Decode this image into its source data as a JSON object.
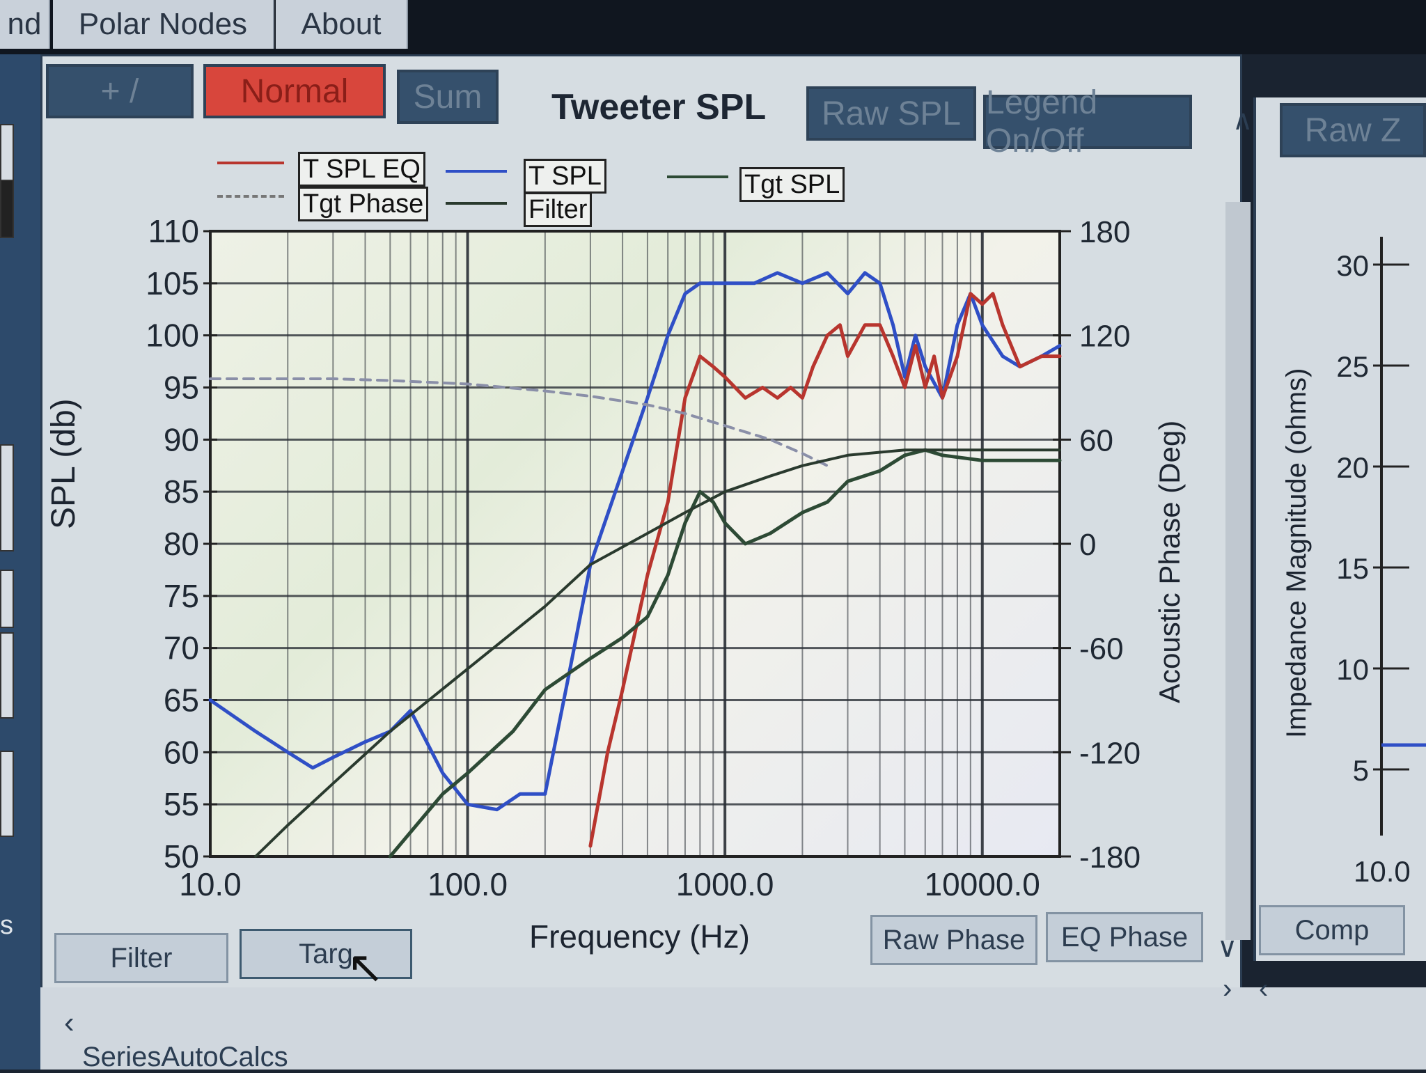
{
  "menu": {
    "tabs": [
      {
        "label": "nd"
      },
      {
        "label": "Polar Nodes"
      },
      {
        "label": "About"
      }
    ]
  },
  "toolbar": {
    "btn_plusminus": "+ /",
    "btn_normal": "Normal",
    "btn_sum": "Sum",
    "chart_title": "Tweeter SPL",
    "btn_raw_spl": "Raw SPL",
    "btn_legend": "Legend On/Off",
    "btn_raw_z": "Raw Z"
  },
  "bottom": {
    "btn_filter": "Filter",
    "btn_target": "Targ",
    "btn_raw_phase": "Raw Phase",
    "btn_eq_phase": "EQ Phase",
    "btn_comp": "Comp",
    "left_label": "s",
    "series_auto": "SeriesAutoCalcs"
  },
  "colors": {
    "t_spl_eq": "#b8352e",
    "t_spl": "#2f4fc6",
    "tgt_spl": "#2d4a35",
    "tgt_phase": "#8a8fa8",
    "filter": "#2a3a2e",
    "grid": "#2a2f36",
    "active_button": "#d8463c"
  },
  "chart_data": {
    "type": "line",
    "x_scale": "log",
    "xlabel": "Frequency (Hz)",
    "ylabel": "SPL (db)",
    "y2label": "Acoustic Phase (Deg)",
    "xlim": [
      10,
      20000
    ],
    "ylim": [
      50,
      110
    ],
    "y2lim": [
      -180,
      180
    ],
    "x_tick_labels": [
      "10.0",
      "100.0",
      "1000.0",
      "10000.0"
    ],
    "x_ticks": [
      10,
      100,
      1000,
      10000
    ],
    "y_ticks": [
      110,
      105,
      100,
      95,
      90,
      85,
      80,
      75,
      70,
      65,
      60,
      55,
      50
    ],
    "y2_ticks": [
      180,
      120,
      60,
      0,
      -60,
      -120,
      -180
    ],
    "grid": true,
    "legend_position": "top",
    "legend": [
      "T SPL EQ",
      "Tgt Phase",
      "T SPL",
      "Filter",
      "Tgt SPL"
    ],
    "series": [
      {
        "name": "T SPL",
        "axis": "left",
        "x": [
          10,
          15,
          20,
          25,
          30,
          40,
          50,
          60,
          80,
          100,
          130,
          160,
          200,
          250,
          300,
          400,
          500,
          600,
          700,
          800,
          1000,
          1300,
          1600,
          2000,
          2500,
          3000,
          3500,
          4000,
          4500,
          5000,
          5500,
          6000,
          7000,
          8000,
          9000,
          10000,
          12000,
          14000,
          17000,
          20000
        ],
        "y": [
          65,
          62,
          60,
          58.5,
          59.5,
          61,
          62,
          64,
          58,
          55,
          54.5,
          56,
          56,
          68,
          78,
          87,
          94,
          100,
          104,
          105,
          105,
          105,
          106,
          105,
          106,
          104,
          106,
          105,
          101,
          96,
          100,
          97,
          94,
          101,
          104,
          101,
          98,
          97,
          98,
          99
        ]
      },
      {
        "name": "T SPL EQ",
        "axis": "left",
        "x": [
          300,
          350,
          400,
          500,
          600,
          700,
          800,
          900,
          1000,
          1200,
          1400,
          1600,
          1800,
          2000,
          2200,
          2500,
          2800,
          3000,
          3500,
          4000,
          4500,
          5000,
          5500,
          6000,
          6500,
          7000,
          8000,
          9000,
          10000,
          11000,
          12000,
          14000,
          17000,
          20000
        ],
        "y": [
          51,
          60,
          66,
          77,
          84,
          94,
          98,
          97,
          96,
          94,
          95,
          94,
          95,
          94,
          97,
          100,
          101,
          98,
          101,
          101,
          98,
          95,
          99,
          95,
          98,
          94,
          98,
          104,
          103,
          104,
          101,
          97,
          98,
          98
        ]
      },
      {
        "name": "Tgt SPL",
        "axis": "left",
        "x": [
          50,
          80,
          100,
          150,
          200,
          300,
          400,
          500,
          600,
          700,
          800,
          900,
          1000,
          1200,
          1500,
          2000,
          2500,
          3000,
          4000,
          5000,
          6000,
          7000,
          10000,
          15000,
          20000
        ],
        "y": [
          50,
          56,
          58,
          62,
          66,
          69,
          71,
          73,
          77,
          82,
          85,
          84,
          82,
          80,
          81,
          83,
          84,
          86,
          87,
          88.5,
          89,
          88.5,
          88,
          88,
          88
        ]
      },
      {
        "name": "Tgt Phase",
        "axis": "right",
        "x": [
          10,
          20,
          30,
          50,
          100,
          200,
          300,
          500,
          700,
          1000,
          1500,
          2000,
          2500
        ],
        "y": [
          95,
          95,
          95,
          94,
          92,
          88,
          85,
          80,
          75,
          68,
          60,
          52,
          45
        ]
      },
      {
        "name": "Filter",
        "axis": "left",
        "x": [
          15,
          20,
          30,
          50,
          100,
          200,
          300,
          500,
          700,
          1000,
          1500,
          2000,
          3000,
          5000,
          7000,
          10000,
          20000
        ],
        "y": [
          50,
          53,
          57,
          62,
          68,
          74,
          78,
          81,
          83,
          85,
          86.5,
          87.5,
          88.5,
          89,
          89,
          89,
          89
        ]
      }
    ]
  },
  "impedance": {
    "ylabel": "Impedance Magnitude (ohms)",
    "y_ticks": [
      "30",
      "25",
      "20",
      "15",
      "10",
      "5"
    ],
    "x_tick": "10.0"
  }
}
